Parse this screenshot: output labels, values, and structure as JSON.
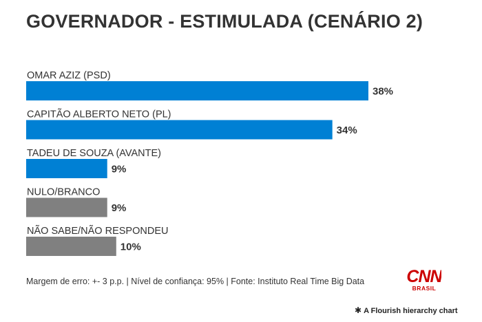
{
  "chart_data": {
    "type": "bar",
    "orientation": "horizontal",
    "title": "GOVERNADOR - ESTIMULADA (CENÁRIO 2)",
    "categories": [
      "OMAR AZIZ (PSD)",
      "CAPITÃO ALBERTO NETO (PL)",
      "TADEU DE SOUZA (AVANTE)",
      "NULO/BRANCO",
      "NÃO SABE/NÃO RESPONDEU"
    ],
    "values": [
      38,
      34,
      9,
      9,
      10
    ],
    "value_labels": [
      "38%",
      "34%",
      "9%",
      "9%",
      "10%"
    ],
    "colors": [
      "#0080d4",
      "#0080d4",
      "#0080d4",
      "#808080",
      "#808080"
    ],
    "xlim": [
      0,
      38
    ],
    "xlabel": "",
    "ylabel": "",
    "grid": false,
    "legend": "none"
  },
  "footer": {
    "note": "Margem de erro: +- 3 p.p. | Nível de confiança: 95% | Fonte: Instituto Real Time Big Data",
    "credit": "A Flourish hierarchy chart"
  },
  "logo": {
    "brand": "CNN",
    "sub": "BRASIL",
    "color": "#cc0000"
  }
}
